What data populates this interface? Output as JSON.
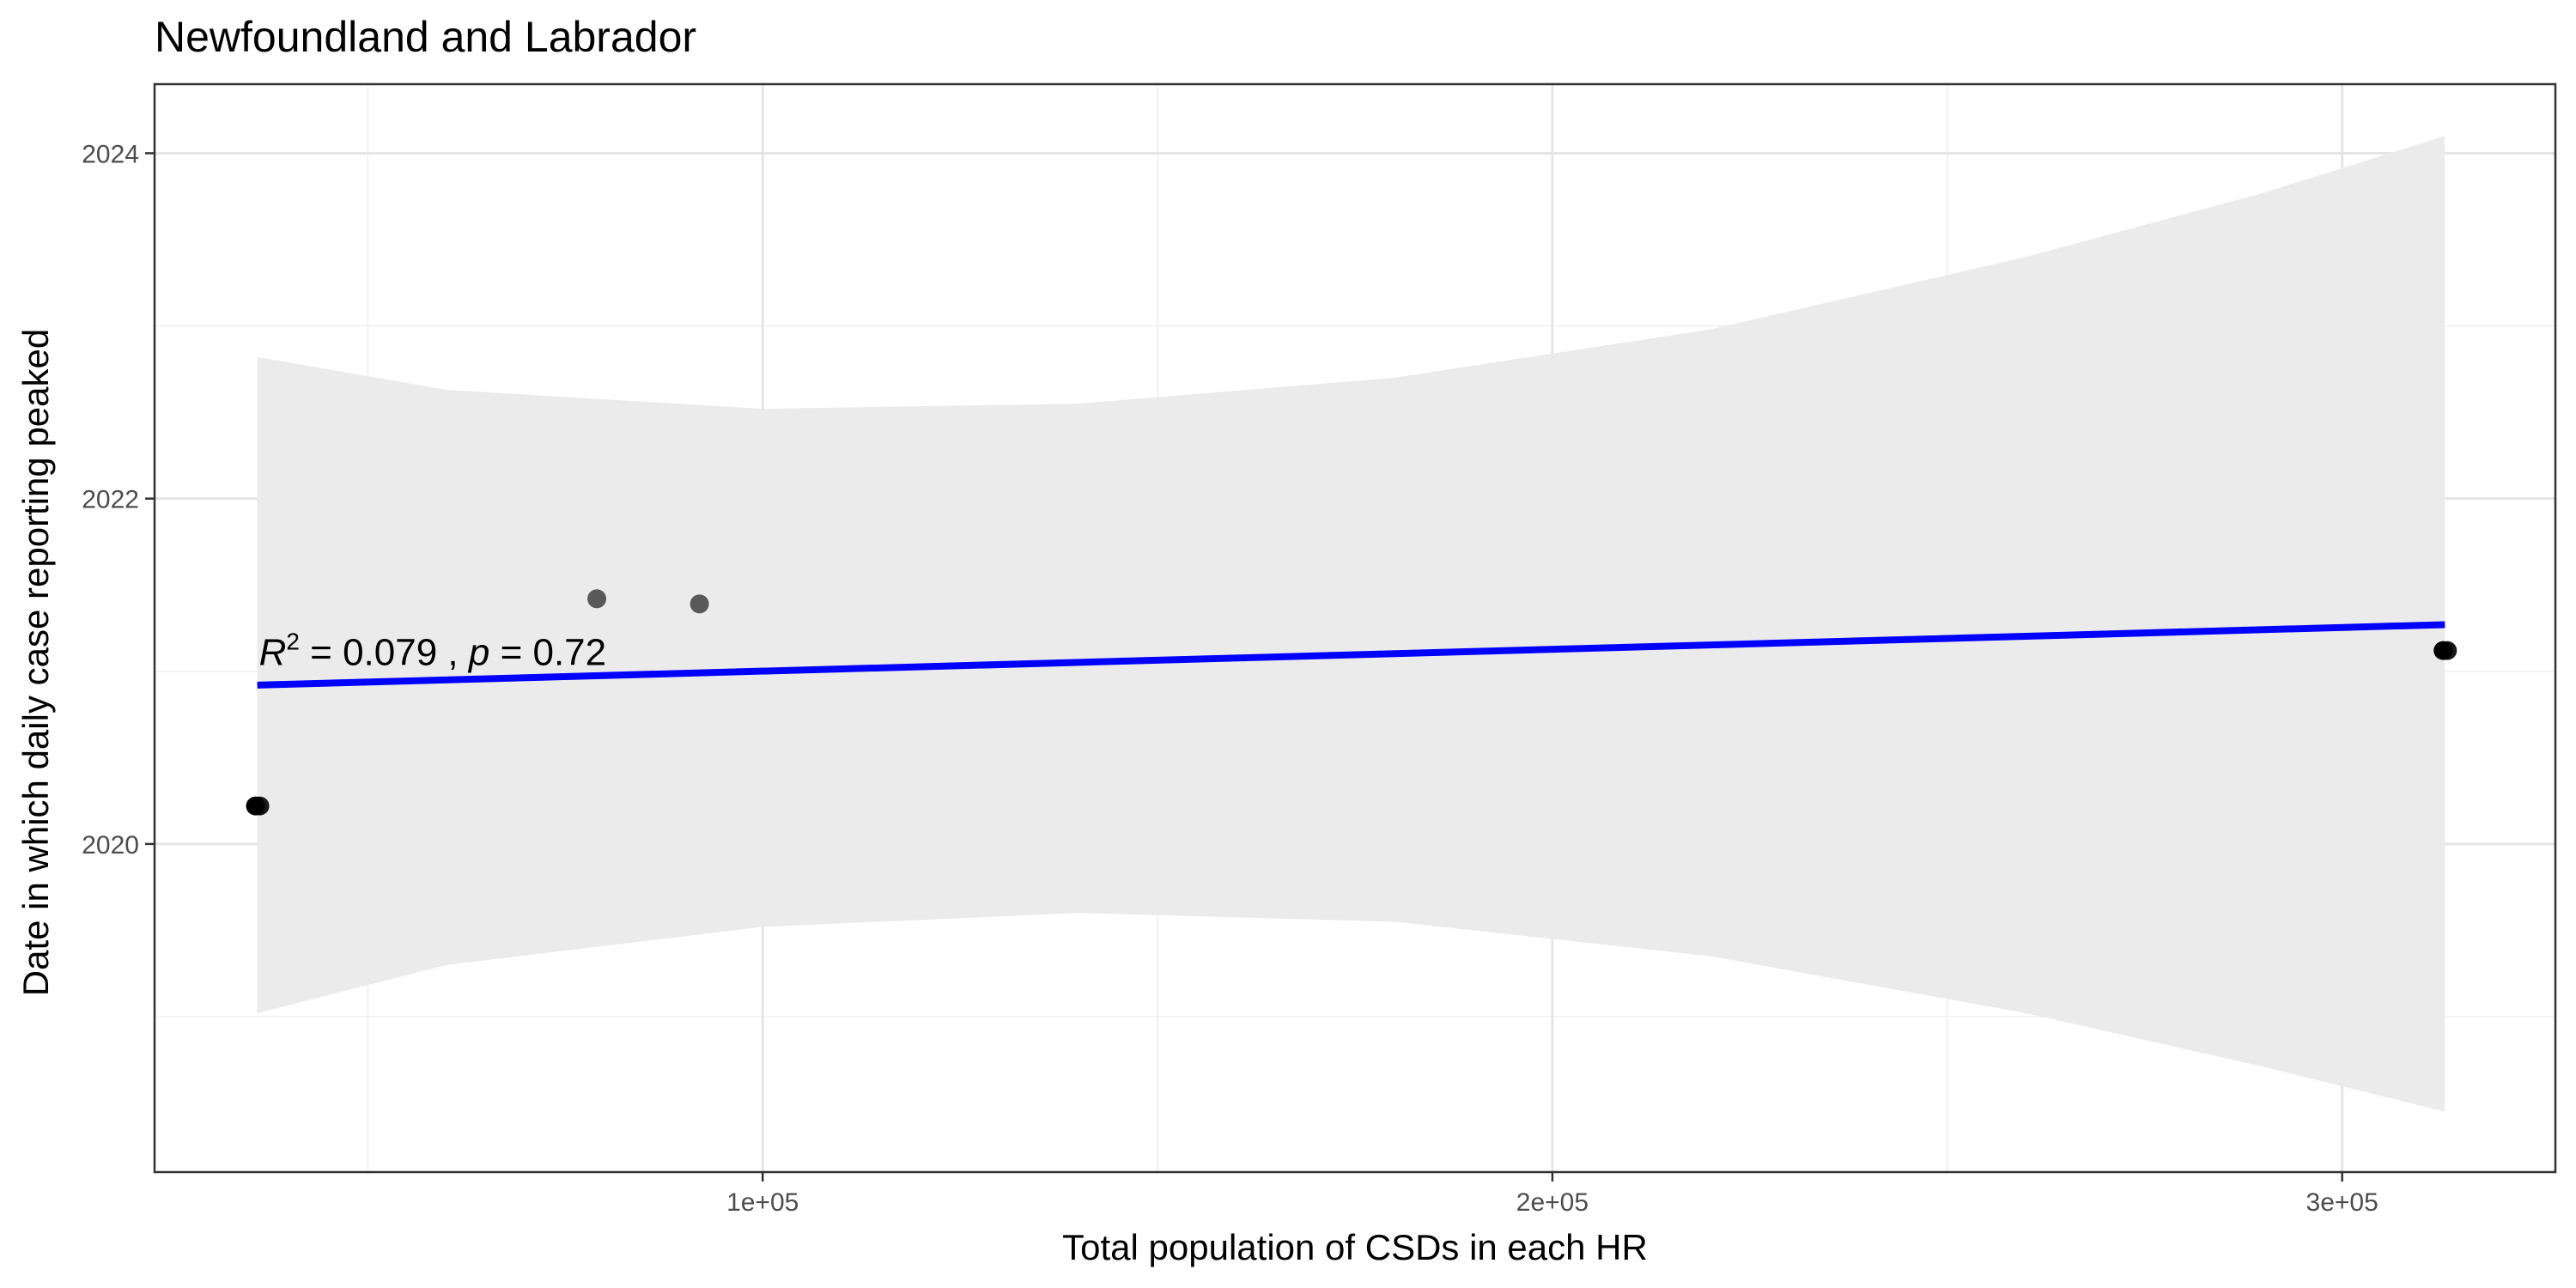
{
  "chart_data": {
    "type": "scatter",
    "title": "Newfoundland and Labrador",
    "xlabel": "Total population of CSDs in each HR",
    "ylabel": "Date in which daily case reporting peaked",
    "xlim": [
      23000,
      327000
    ],
    "ylim": [
      2018.1,
      2024.4
    ],
    "x_ticks": [
      100000,
      200000,
      300000
    ],
    "x_tick_labels": [
      "1e+05",
      "2e+05",
      "3e+05"
    ],
    "x_minor_ticks": [
      50000,
      150000,
      250000
    ],
    "y_ticks": [
      2020,
      2022,
      2024
    ],
    "y_tick_labels": [
      "2020",
      "2022",
      "2024"
    ],
    "y_minor_ticks": [
      2019,
      2021,
      2023
    ],
    "grid": true,
    "legend": "none",
    "series": [
      {
        "points": [
          {
            "x": 36000,
            "y": 2020.22,
            "overlap": true
          },
          {
            "x": 79000,
            "y": 2021.42,
            "overlap": false
          },
          {
            "x": 92000,
            "y": 2021.39,
            "overlap": false
          },
          {
            "x": 313000,
            "y": 2021.12,
            "overlap": true
          }
        ]
      }
    ],
    "fit_line": {
      "color": "#0000ff",
      "x": [
        36000,
        313000
      ],
      "y": [
        2020.92,
        2021.27
      ]
    },
    "confidence_band": {
      "color": "#ebebeb",
      "x": [
        36000,
        60000,
        100000,
        140000,
        180000,
        220000,
        260000,
        290000,
        313000
      ],
      "upper": [
        2022.82,
        2022.63,
        2022.52,
        2022.55,
        2022.7,
        2022.98,
        2023.4,
        2023.77,
        2024.1
      ],
      "lower": [
        2019.02,
        2019.3,
        2019.52,
        2019.6,
        2019.55,
        2019.35,
        2019.02,
        2018.71,
        2018.45
      ]
    },
    "annotation": {
      "r_label": "R",
      "r_exponent": "2",
      "r_value": " = 0.079 , ",
      "p_label": "p",
      "p_value": " = 0.72",
      "anchor_x": 36000,
      "anchor_y": 2021.11
    },
    "point_color": "#000000",
    "overlap_point_color": "#1a1a1a",
    "single_point_color": "#595959",
    "panel_border_color": "#333333"
  }
}
